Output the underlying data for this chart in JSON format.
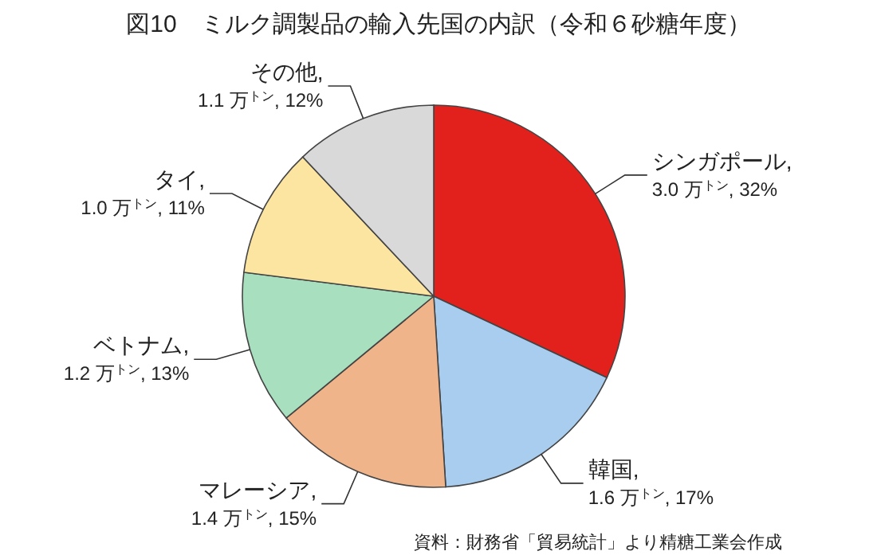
{
  "chart_data": {
    "type": "pie",
    "title": "図10　ミルク調製品の輸入先国の内訳（令和６砂糖年度）",
    "categories": [
      "シンガポール",
      "韓国",
      "マレーシア",
      "ベトナム",
      "タイ",
      "その他"
    ],
    "values": [
      32,
      17,
      15,
      13,
      11,
      12
    ],
    "value_labels": [
      ",\n3.0 万$^{トン}$, 32%",
      ",\n1.6 万$^{トン}$, 17%",
      ",\n1.4 万$^{トン}$, 15%",
      ",\n1.2 万$^{トン}$, 13%",
      ",\n1.0 万$^{トン}$, 11%",
      ",\n1.1 万$^{トン}$, 12%"
    ],
    "colors": [
      "#e3211c",
      "#a9cdef",
      "#efb48a",
      "#a8dfbf",
      "#fbe5a0",
      "#d9d9d9"
    ],
    "annotations": [
      "資料：財務省「貿易統計」より精糖工業会作成"
    ]
  }
}
